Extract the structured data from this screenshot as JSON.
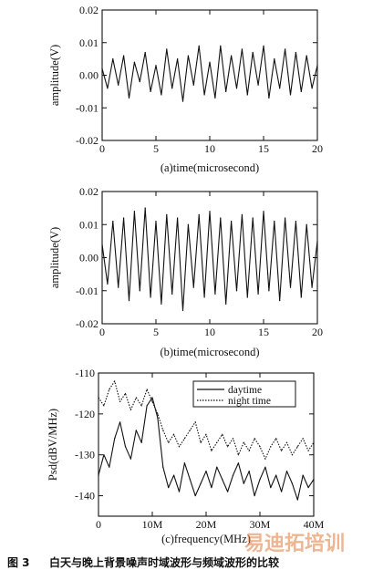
{
  "caption": {
    "label": "图 3",
    "text": "白天与晚上背景噪声时域波形与频域波形的比较"
  },
  "watermark": {
    "text": "易迪拓培训"
  },
  "colors": {
    "ink": "#111111",
    "watermark": "#e07a3a"
  },
  "chart_data": [
    {
      "id": "a",
      "type": "line",
      "xlabel": "(a)time(microsecond)",
      "ylabel": "amplitude(V)",
      "xlim": [
        0,
        20
      ],
      "ylim": [
        -0.02,
        0.02
      ],
      "xticks": [
        0,
        5,
        10,
        15,
        20
      ],
      "xtick_labels": [
        "0",
        "5",
        "10",
        "15",
        "20"
      ],
      "yticks": [
        -0.02,
        -0.01,
        0.0,
        0.01,
        0.02
      ],
      "ytick_labels": [
        "-0.02",
        "-0.01",
        "0.00",
        "0.01",
        "0.02"
      ],
      "grid": false,
      "series": [
        {
          "x": [
            0,
            0.5,
            1,
            1.5,
            2,
            2.5,
            3,
            3.5,
            4,
            4.5,
            5,
            5.5,
            6,
            6.5,
            7,
            7.5,
            8,
            8.5,
            9,
            9.5,
            10,
            10.5,
            11,
            11.5,
            12,
            12.5,
            13,
            13.5,
            14,
            14.5,
            15,
            15.5,
            16,
            16.5,
            17,
            17.5,
            18,
            18.5,
            19,
            19.5,
            20
          ],
          "values": [
            0.002,
            -0.004,
            0.005,
            -0.003,
            0.006,
            -0.007,
            0.004,
            -0.002,
            0.007,
            -0.005,
            0.003,
            -0.006,
            0.008,
            -0.004,
            0.005,
            -0.008,
            0.006,
            -0.003,
            0.009,
            -0.006,
            0.004,
            -0.007,
            0.009,
            -0.005,
            0.006,
            -0.004,
            0.008,
            -0.006,
            0.007,
            -0.003,
            0.009,
            -0.007,
            0.005,
            -0.004,
            0.008,
            -0.006,
            0.007,
            -0.005,
            0.006,
            -0.004,
            0.003
          ]
        }
      ]
    },
    {
      "id": "b",
      "type": "line",
      "xlabel": "(b)time(microsecond)",
      "ylabel": "amplitude(V)",
      "xlim": [
        0,
        20
      ],
      "ylim": [
        -0.02,
        0.02
      ],
      "xticks": [
        0,
        5,
        10,
        15,
        20
      ],
      "xtick_labels": [
        "0",
        "5",
        "10",
        "15",
        "20"
      ],
      "yticks": [
        -0.02,
        -0.01,
        0.0,
        0.01,
        0.02
      ],
      "ytick_labels": [
        "-0.02",
        "-0.01",
        "0.00",
        "0.01",
        "0.02"
      ],
      "grid": false,
      "series": [
        {
          "x": [
            0,
            0.5,
            1,
            1.5,
            2,
            2.5,
            3,
            3.5,
            4,
            4.5,
            5,
            5.5,
            6,
            6.5,
            7,
            7.5,
            8,
            8.5,
            9,
            9.5,
            10,
            10.5,
            11,
            11.5,
            12,
            12.5,
            13,
            13.5,
            14,
            14.5,
            15,
            15.5,
            16,
            16.5,
            17,
            17.5,
            18,
            18.5,
            19,
            19.5,
            20
          ],
          "values": [
            0.004,
            -0.008,
            0.011,
            -0.009,
            0.012,
            -0.013,
            0.014,
            -0.01,
            0.015,
            -0.012,
            0.011,
            -0.014,
            0.013,
            -0.011,
            0.012,
            -0.016,
            0.01,
            -0.009,
            0.013,
            -0.012,
            0.014,
            -0.011,
            0.012,
            -0.014,
            0.011,
            -0.01,
            0.013,
            -0.012,
            0.012,
            -0.011,
            0.014,
            -0.01,
            0.011,
            -0.013,
            0.012,
            -0.009,
            0.011,
            -0.012,
            0.01,
            -0.009,
            0.005
          ]
        }
      ]
    },
    {
      "id": "c",
      "type": "line",
      "xlabel": "(c)frequency(MHz)",
      "ylabel": "Psd(dBV/MHz)",
      "xlim": [
        0,
        40
      ],
      "ylim": [
        -145,
        -110
      ],
      "xticks": [
        0,
        10,
        20,
        30,
        40
      ],
      "xtick_labels": [
        "0",
        "10M",
        "20M",
        "30M",
        "40M"
      ],
      "yticks": [
        -140,
        -130,
        -120,
        -110
      ],
      "ytick_labels": [
        "-140",
        "-130",
        "-120",
        "-110"
      ],
      "grid": false,
      "legend": "top-right",
      "series": [
        {
          "name": "daytime",
          "style": "solid",
          "x": [
            0,
            1,
            2,
            3,
            4,
            5,
            6,
            7,
            8,
            9,
            10,
            11,
            12,
            13,
            14,
            15,
            16,
            17,
            18,
            19,
            20,
            21,
            22,
            23,
            24,
            25,
            26,
            27,
            28,
            29,
            30,
            31,
            32,
            33,
            34,
            35,
            36,
            37,
            38,
            39,
            40
          ],
          "values": [
            -135,
            -130,
            -133,
            -126,
            -122,
            -128,
            -131,
            -124,
            -127,
            -118,
            -116,
            -121,
            -133,
            -138,
            -135,
            -139,
            -132,
            -136,
            -140,
            -137,
            -134,
            -138,
            -133,
            -136,
            -139,
            -135,
            -132,
            -137,
            -134,
            -140,
            -136,
            -133,
            -138,
            -135,
            -139,
            -134,
            -137,
            -141,
            -135,
            -138,
            -136
          ]
        },
        {
          "name": "night time",
          "style": "dotted",
          "x": [
            0,
            1,
            2,
            3,
            4,
            5,
            6,
            7,
            8,
            9,
            10,
            11,
            12,
            13,
            14,
            15,
            16,
            17,
            18,
            19,
            20,
            21,
            22,
            23,
            24,
            25,
            26,
            27,
            28,
            29,
            30,
            31,
            32,
            33,
            34,
            35,
            36,
            37,
            38,
            39,
            40
          ],
          "values": [
            -116,
            -118,
            -114,
            -112,
            -117,
            -115,
            -119,
            -116,
            -118,
            -114,
            -117,
            -120,
            -124,
            -127,
            -125,
            -128,
            -126,
            -124,
            -122,
            -127,
            -125,
            -129,
            -127,
            -125,
            -128,
            -126,
            -130,
            -127,
            -129,
            -126,
            -128,
            -131,
            -128,
            -126,
            -129,
            -127,
            -130,
            -128,
            -126,
            -129,
            -127
          ]
        }
      ]
    }
  ]
}
